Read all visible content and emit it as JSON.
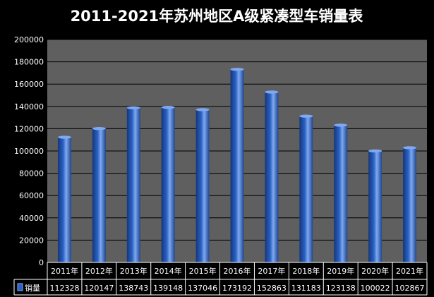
{
  "chart_data": {
    "type": "bar",
    "title": "2011-2021年苏州地区A级紧凑型车销量表",
    "categories": [
      "2011年",
      "2012年",
      "2013年",
      "2014年",
      "2015年",
      "2016年",
      "2017年",
      "2018年",
      "2019年",
      "2020年",
      "2021年"
    ],
    "series": [
      {
        "name": "销量",
        "values": [
          112328,
          120147,
          138743,
          139148,
          137046,
          173192,
          152863,
          131183,
          123138,
          100022,
          102867
        ]
      }
    ],
    "ylim": [
      0,
      200000
    ],
    "yticks": [
      0,
      20000,
      40000,
      60000,
      80000,
      100000,
      120000,
      140000,
      160000,
      180000,
      200000
    ],
    "grid": true,
    "data_table": true,
    "colors": {
      "background": "#000000",
      "plot_area": "#5f5f5f",
      "bar": "#2a62c4",
      "bar_highlight": "#7fa8f0",
      "bar_dark": "#15367a",
      "gridline": "#000000",
      "text": "#ffffff"
    }
  }
}
